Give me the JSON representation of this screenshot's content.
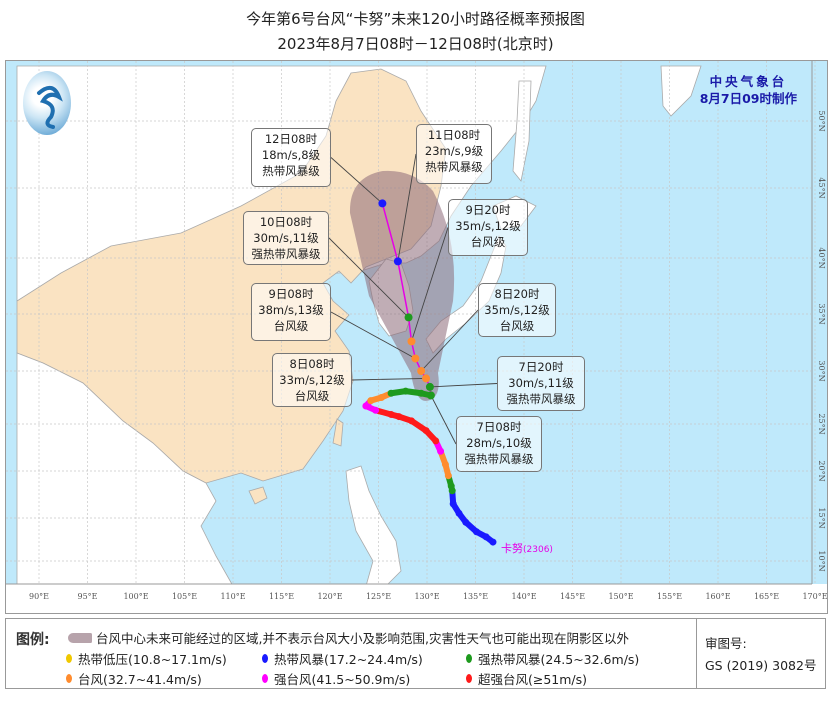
{
  "header": {
    "title": "今年第6号台风“卡努”未来120小时路径概率预报图",
    "subtitle": "2023年8月7日08时－12日08时(北京时)"
  },
  "agency": {
    "name": "中央气象台",
    "issued": "8月7日09时制作"
  },
  "storm_label": {
    "name": "卡努",
    "number": "(2306)"
  },
  "axes": {
    "lon_labels": [
      "90°E",
      "95°E",
      "100°E",
      "105°E",
      "110°E",
      "115°E",
      "120°E",
      "125°E",
      "130°E",
      "135°E",
      "140°E",
      "145°E",
      "150°E",
      "155°E",
      "160°E",
      "165°E",
      "170°E"
    ],
    "lon_values": [
      90,
      95,
      100,
      105,
      110,
      115,
      120,
      125,
      130,
      135,
      140,
      145,
      150,
      155,
      160,
      165,
      170
    ],
    "lat_labels": [
      "50°N",
      "45°N",
      "40°N",
      "35°N",
      "30°N",
      "25°N",
      "20°N",
      "15°N",
      "10°N"
    ],
    "lat_values": [
      50,
      45,
      40,
      35,
      30,
      25,
      20,
      15,
      10
    ]
  },
  "colors": {
    "sea": "#bfe9fb",
    "china_land": "#fae3c2",
    "other_land": "#ffffff",
    "cone": "#8c6a78",
    "forecast_line": "#e600e6",
    "categories": {
      "TD": "#f0c800",
      "TS": "#1a1aff",
      "STS": "#1e9a1e",
      "TY": "#ff8c2e",
      "STY": "#ff00ff",
      "SuperTY": "#ff1a1a"
    }
  },
  "forecast": [
    {
      "time": "12日08时",
      "wind": "18m/s,8级",
      "level": "热带风暴级",
      "cat": "TS",
      "lon": 125.4,
      "lat": 43.9
    },
    {
      "time": "11日08时",
      "wind": "23m/s,9级",
      "level": "热带风暴级",
      "cat": "TS",
      "lon": 127.0,
      "lat": 39.7
    },
    {
      "time": "10日08时",
      "wind": "30m/s,11级",
      "level": "强热带风暴级",
      "cat": "STS",
      "lon": 128.1,
      "lat": 34.7
    },
    {
      "time": "9日20时",
      "wind": "35m/s,12级",
      "level": "台风级",
      "cat": "TY",
      "lon": 128.4,
      "lat": 32.6
    },
    {
      "time": "9日08时",
      "wind": "38m/s,13级",
      "level": "台风级",
      "cat": "TY",
      "lon": 128.8,
      "lat": 31.1
    },
    {
      "time": "8日20时",
      "wind": "35m/s,12级",
      "level": "台风级",
      "cat": "TY",
      "lon": 129.4,
      "lat": 30.0
    },
    {
      "time": "8日08时",
      "wind": "33m/s,12级",
      "level": "台风级",
      "cat": "TY",
      "lon": 129.9,
      "lat": 29.3
    },
    {
      "time": "7日20时",
      "wind": "30m/s,11级",
      "level": "强热带风暴级",
      "cat": "STS",
      "lon": 130.3,
      "lat": 28.5
    },
    {
      "time": "7日08时",
      "wind": "28m/s,10级",
      "level": "强热带风暴级",
      "cat": "STS",
      "lon": 130.4,
      "lat": 27.7
    }
  ],
  "past_track": [
    {
      "lon": 136.8,
      "lat": 12.2,
      "cat": "TS"
    },
    {
      "lon": 136.1,
      "lat": 12.8,
      "cat": "TS"
    },
    {
      "lon": 135.1,
      "lat": 13.4,
      "cat": "TS"
    },
    {
      "lon": 134.0,
      "lat": 14.5,
      "cat": "TS"
    },
    {
      "lon": 133.3,
      "lat": 15.5,
      "cat": "TS"
    },
    {
      "lon": 132.7,
      "lat": 16.5,
      "cat": "TS"
    },
    {
      "lon": 132.6,
      "lat": 17.9,
      "cat": "STS"
    },
    {
      "lon": 132.5,
      "lat": 18.4,
      "cat": "STS"
    },
    {
      "lon": 132.2,
      "lat": 19.5,
      "cat": "TY"
    },
    {
      "lon": 131.9,
      "lat": 20.7,
      "cat": "TY"
    },
    {
      "lon": 131.4,
      "lat": 22.1,
      "cat": "STY"
    },
    {
      "lon": 130.9,
      "lat": 23.2,
      "cat": "SuperTY"
    },
    {
      "lon": 129.9,
      "lat": 24.3,
      "cat": "SuperTY"
    },
    {
      "lon": 128.4,
      "lat": 25.3,
      "cat": "SuperTY"
    },
    {
      "lon": 127.1,
      "lat": 25.7,
      "cat": "SuperTY"
    },
    {
      "lon": 126.3,
      "lat": 25.9,
      "cat": "SuperTY"
    },
    {
      "lon": 124.7,
      "lat": 26.3,
      "cat": "STY"
    },
    {
      "lon": 123.7,
      "lat": 26.7,
      "cat": "STY"
    },
    {
      "lon": 124.2,
      "lat": 27.2,
      "cat": "TY"
    },
    {
      "lon": 125.3,
      "lat": 27.5,
      "cat": "TY"
    },
    {
      "lon": 126.3,
      "lat": 27.9,
      "cat": "STS"
    },
    {
      "lon": 127.8,
      "lat": 28.1,
      "cat": "STS"
    },
    {
      "lon": 129.4,
      "lat": 27.9,
      "cat": "STS"
    },
    {
      "lon": 130.4,
      "lat": 27.7,
      "cat": "STS"
    }
  ],
  "legend": {
    "title": "图例:",
    "cone_text": "台风中心未来可能经过的区域,并不表示台风大小及影响范围,灾害性天气也可能出现在阴影区以外",
    "items": [
      {
        "label": "热带低压(10.8~17.1m/s)",
        "cat": "TD"
      },
      {
        "label": "热带风暴(17.2~24.4m/s)",
        "cat": "TS"
      },
      {
        "label": "强热带风暴(24.5~32.6m/s)",
        "cat": "STS"
      },
      {
        "label": "台风(32.7~41.4m/s)",
        "cat": "TY"
      },
      {
        "label": "强台风(41.5~50.9m/s)",
        "cat": "STY"
      },
      {
        "label": "超强台风(≥51m/s)",
        "cat": "SuperTY"
      }
    ]
  },
  "review": {
    "label": "审图号:",
    "number": "GS (2019) 3082号"
  }
}
